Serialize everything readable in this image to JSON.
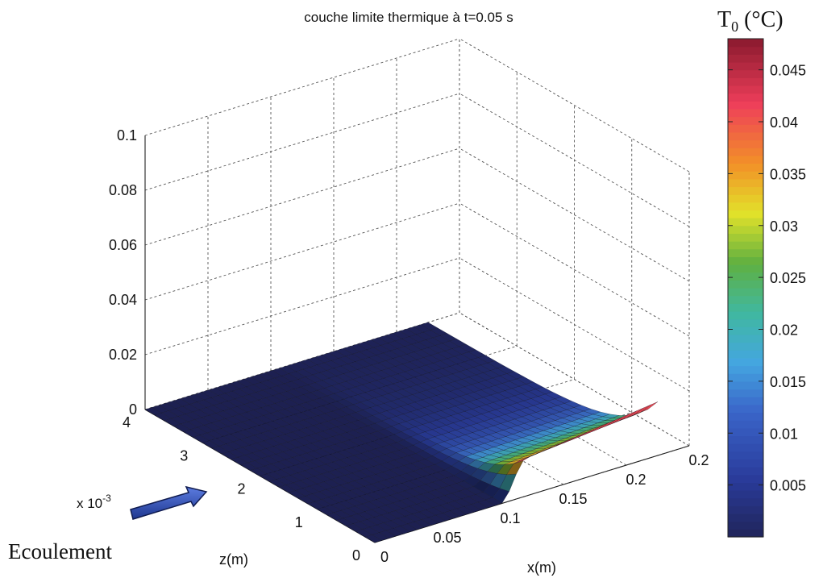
{
  "chart_data": {
    "type": "surface3d",
    "title": "couche limite thermique à t=0.05 s",
    "xlabel": "x(m)",
    "zlabel_axis": "z(m)",
    "z_exponent": "x 10",
    "z_exponent_power": "-3",
    "x_ticks": [
      "0",
      "0.05",
      "0.1",
      "0.15",
      "0.2",
      "0.2"
    ],
    "z_ticks": [
      "0",
      "1",
      "2",
      "3",
      "4"
    ],
    "v_ticks": [
      "0",
      "0.02",
      "0.04",
      "0.06",
      "0.08",
      "0.1"
    ],
    "xlim": [
      0,
      0.25
    ],
    "zlim_mm": [
      0,
      4
    ],
    "vlim": [
      0,
      0.1
    ],
    "grid": true,
    "colorbar": {
      "title_main": "T",
      "title_sub": "0",
      "title_unit": " (°C)",
      "ticks": [
        "0.005",
        "0.01",
        "0.015",
        "0.02",
        "0.025",
        "0.03",
        "0.035",
        "0.04",
        "0.045"
      ],
      "range": [
        0,
        0.048
      ]
    },
    "surface_profile": {
      "x_step_start": 0.1,
      "x_step_end": 0.12,
      "plateau_value_at_wall": 0.02,
      "boundary_layer_thickness_mm": 1.1,
      "peak_value_color": 0.045,
      "mesh_nx": 40,
      "mesh_nz": 24
    }
  },
  "annotation": {
    "label": "Ecoulement",
    "arrow_color": "#2a4aa8"
  }
}
